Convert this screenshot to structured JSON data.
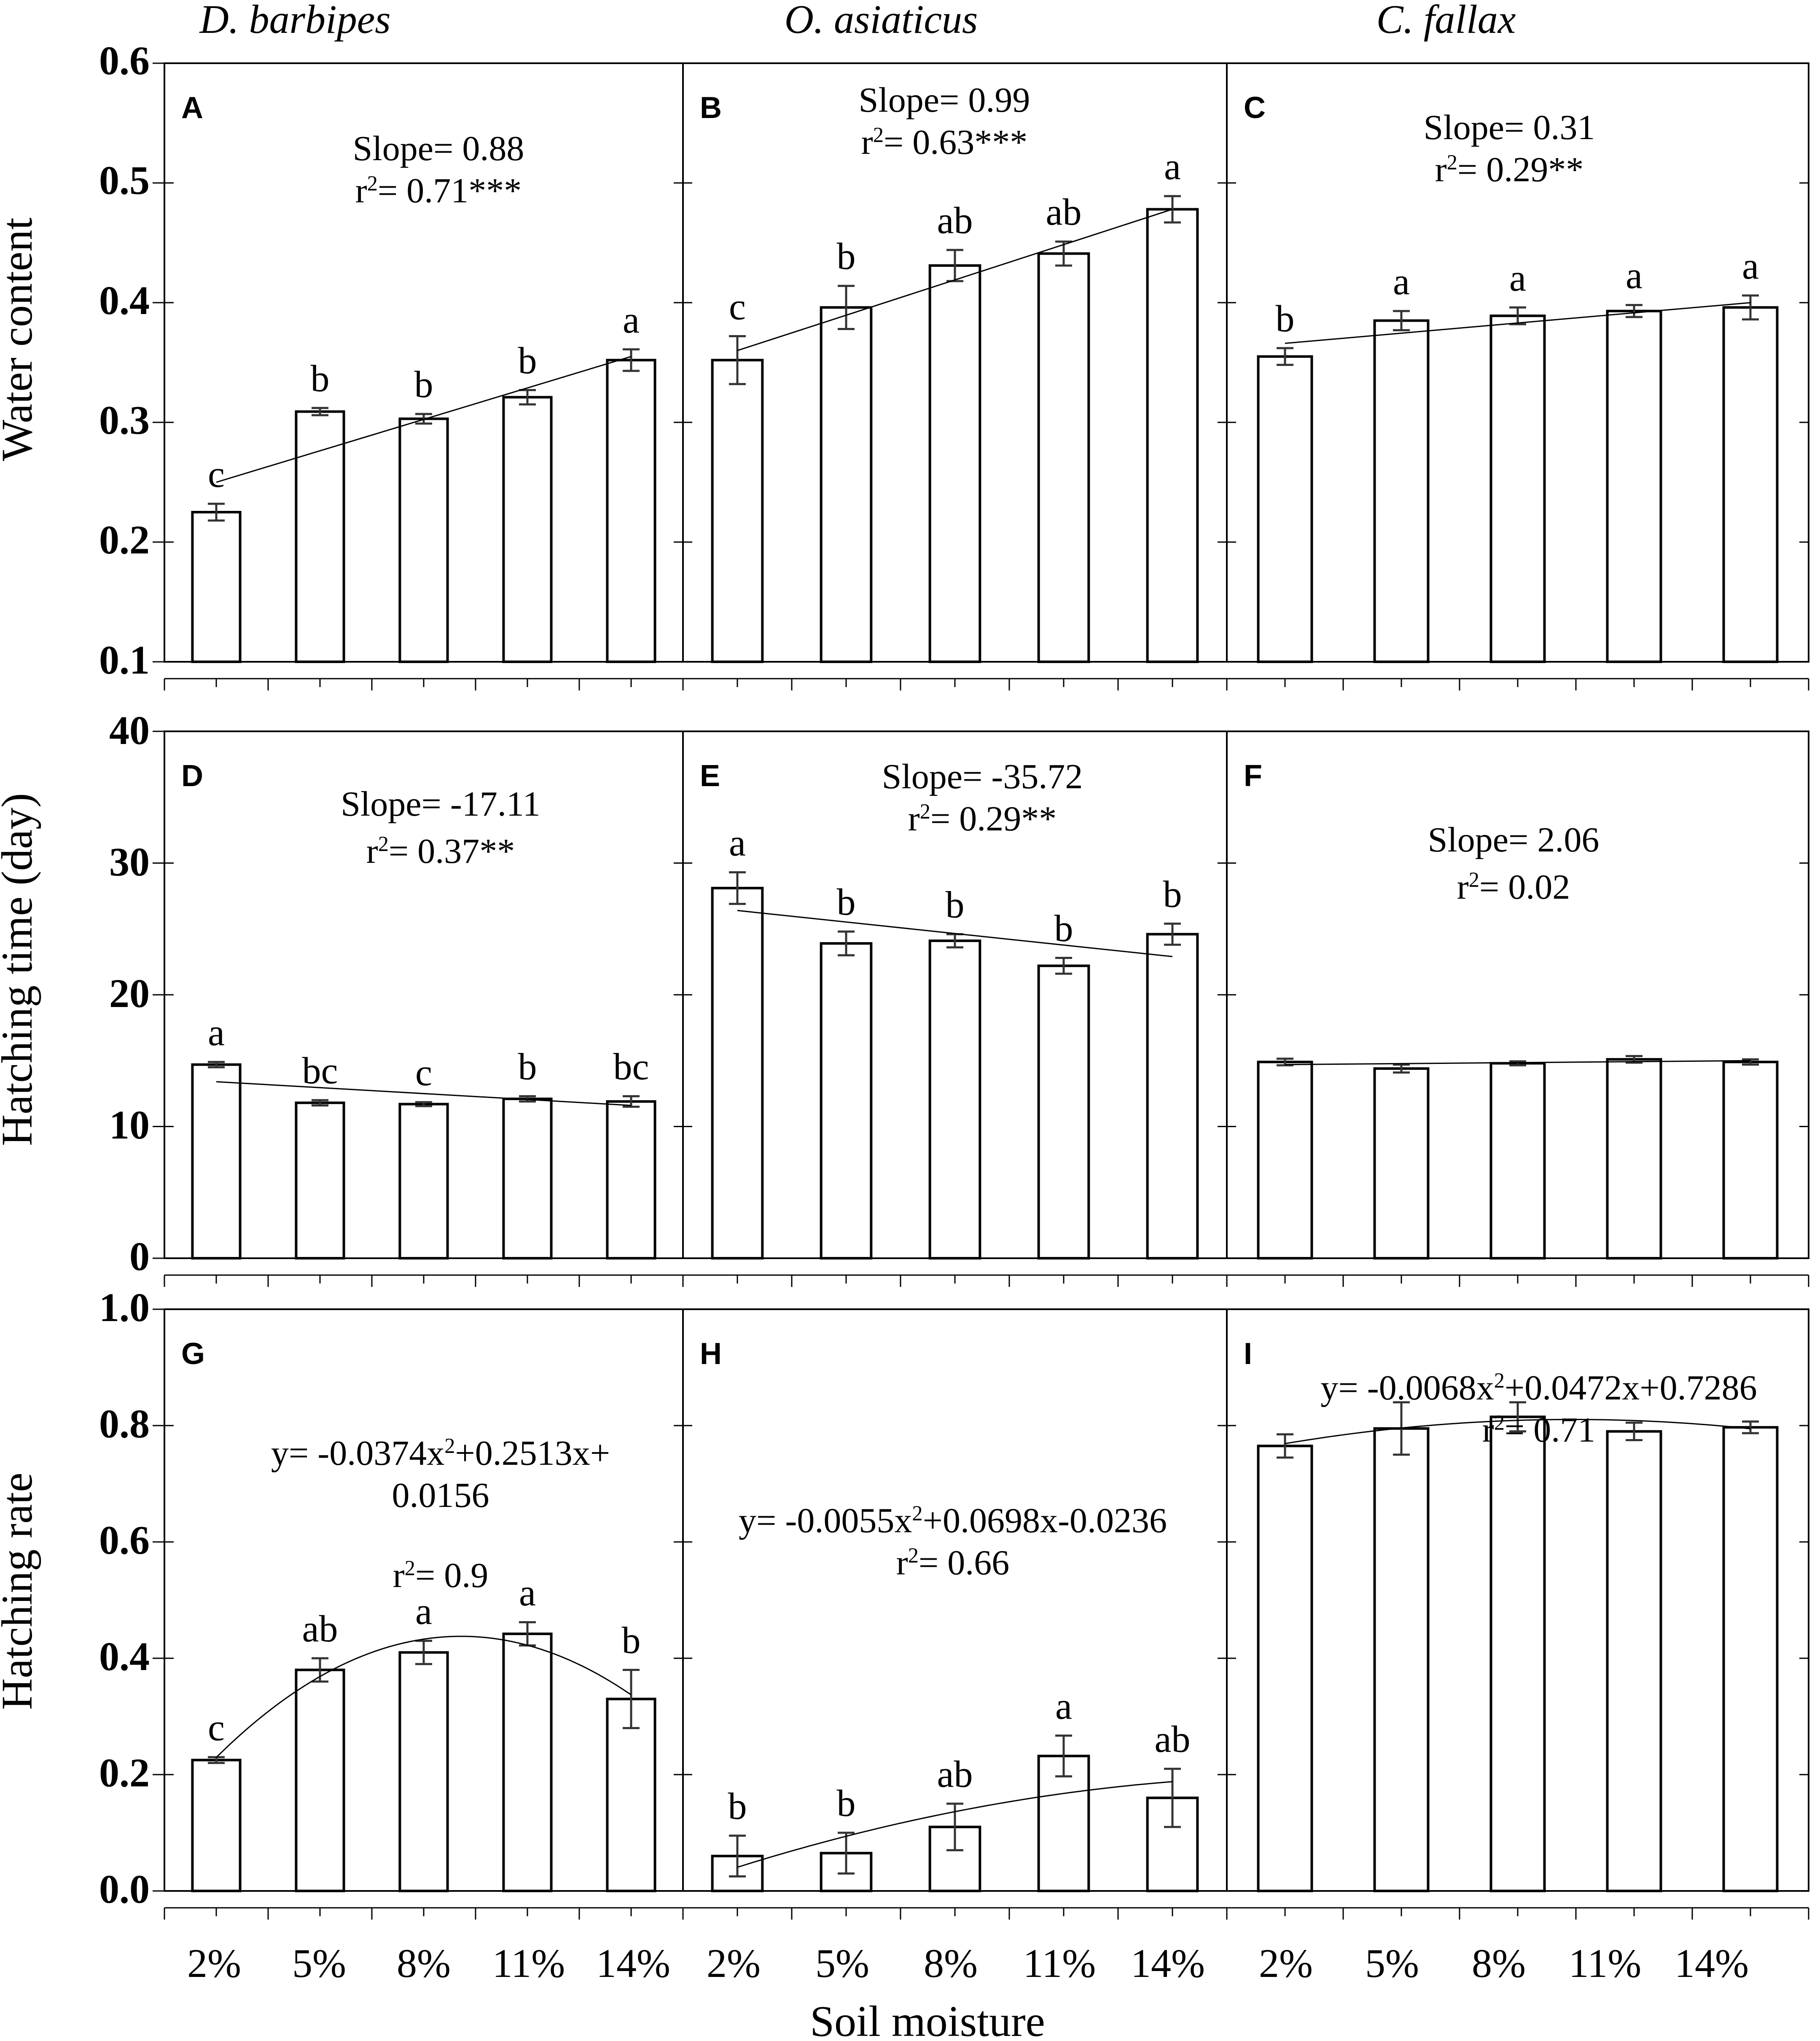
{
  "figure": {
    "species": [
      "D. barbipes",
      "O. asiaticus",
      "C. fallax"
    ],
    "x_label": "Soil moisture",
    "categories": [
      "2%",
      "5%",
      "8%",
      "11%",
      "14%"
    ],
    "rows": [
      {
        "y_label": "Water content",
        "ticks": [
          "0.1",
          "0.2",
          "0.3",
          "0.4",
          "0.5",
          "0.6"
        ]
      },
      {
        "y_label": "Hatching time (day)",
        "ticks": [
          "0",
          "10",
          "20",
          "30",
          "40"
        ]
      },
      {
        "y_label": "Hatching rate",
        "ticks": [
          "0.0",
          "0.2",
          "0.4",
          "0.6",
          "0.8",
          "1.0"
        ]
      }
    ]
  },
  "chart_data": [
    {
      "panel": "A",
      "type": "bar",
      "species": "D. barbipes",
      "ylabel": "Water content",
      "xlabel": "Soil moisture",
      "categories": [
        "2%",
        "5%",
        "8%",
        "11%",
        "14%"
      ],
      "ylim": [
        0.1,
        0.6
      ],
      "values": [
        0.225,
        0.309,
        0.303,
        0.321,
        0.352
      ],
      "errors": [
        0.007,
        0.003,
        0.004,
        0.006,
        0.009
      ],
      "letters": [
        "c",
        "b",
        "b",
        "b",
        "a"
      ],
      "annotation": [
        "Slope= 0.88",
        "r²= 0.71***"
      ],
      "fit": {
        "kind": "linear",
        "start": 0.25,
        "end": 0.355
      }
    },
    {
      "panel": "B",
      "type": "bar",
      "species": "O. asiaticus",
      "ylabel": "Water content",
      "xlabel": "Soil moisture",
      "categories": [
        "2%",
        "5%",
        "8%",
        "11%",
        "14%"
      ],
      "ylim": [
        0.1,
        0.6
      ],
      "values": [
        0.352,
        0.396,
        0.431,
        0.441,
        0.478
      ],
      "errors": [
        0.02,
        0.018,
        0.013,
        0.01,
        0.011
      ],
      "letters": [
        "c",
        "b",
        "ab",
        "ab",
        "a"
      ],
      "annotation": [
        "Slope= 0.99",
        "r²= 0.63***"
      ],
      "fit": {
        "kind": "linear",
        "start": 0.36,
        "end": 0.478
      }
    },
    {
      "panel": "C",
      "type": "bar",
      "species": "C. fallax",
      "ylabel": "Water content",
      "xlabel": "Soil moisture",
      "categories": [
        "2%",
        "5%",
        "8%",
        "11%",
        "14%"
      ],
      "ylim": [
        0.1,
        0.6
      ],
      "values": [
        0.355,
        0.385,
        0.389,
        0.393,
        0.396
      ],
      "errors": [
        0.007,
        0.008,
        0.007,
        0.005,
        0.01
      ],
      "letters": [
        "b",
        "a",
        "a",
        "a",
        "a"
      ],
      "annotation": [
        "Slope= 0.31",
        "r²= 0.29**"
      ],
      "fit": {
        "kind": "linear",
        "start": 0.366,
        "end": 0.4
      }
    },
    {
      "panel": "D",
      "type": "bar",
      "species": "D. barbipes",
      "ylabel": "Hatching time (day)",
      "xlabel": "Soil moisture",
      "categories": [
        "2%",
        "5%",
        "8%",
        "11%",
        "14%"
      ],
      "ylim": [
        0,
        40
      ],
      "values": [
        14.7,
        11.8,
        11.7,
        12.1,
        11.9
      ],
      "errors": [
        0.2,
        0.2,
        0.15,
        0.2,
        0.4
      ],
      "letters": [
        "a",
        "bc",
        "c",
        "b",
        "bc"
      ],
      "annotation": [
        "Slope= -17.11",
        "r²= 0.37**"
      ],
      "fit": {
        "kind": "linear",
        "start": 13.4,
        "end": 11.6
      }
    },
    {
      "panel": "E",
      "type": "bar",
      "species": "O. asiaticus",
      "ylabel": "Hatching time (day)",
      "xlabel": "Soil moisture",
      "categories": [
        "2%",
        "5%",
        "8%",
        "11%",
        "14%"
      ],
      "ylim": [
        0,
        40
      ],
      "values": [
        28.1,
        23.9,
        24.1,
        22.2,
        24.6
      ],
      "errors": [
        1.2,
        0.9,
        0.5,
        0.6,
        0.8
      ],
      "letters": [
        "a",
        "b",
        "b",
        "b",
        "b"
      ],
      "annotation": [
        "Slope= -35.72",
        "r²= 0.29**"
      ],
      "fit": {
        "kind": "linear",
        "start": 26.4,
        "end": 22.9
      }
    },
    {
      "panel": "F",
      "type": "bar",
      "species": "C. fallax",
      "ylabel": "Hatching time (day)",
      "xlabel": "Soil moisture",
      "categories": [
        "2%",
        "5%",
        "8%",
        "11%",
        "14%"
      ],
      "ylim": [
        0,
        40
      ],
      "values": [
        14.9,
        14.4,
        14.8,
        15.1,
        14.9
      ],
      "errors": [
        0.25,
        0.3,
        0.15,
        0.25,
        0.2
      ],
      "letters": [
        "",
        "",
        "",
        "",
        ""
      ],
      "annotation": [
        "Slope= 2.06",
        "r²= 0.02"
      ],
      "fit": {
        "kind": "linear",
        "start": 14.7,
        "end": 15.0
      }
    },
    {
      "panel": "G",
      "type": "bar",
      "species": "D. barbipes",
      "ylabel": "Hatching rate",
      "xlabel": "Soil moisture",
      "categories": [
        "2%",
        "5%",
        "8%",
        "11%",
        "14%"
      ],
      "ylim": [
        0,
        1
      ],
      "values": [
        0.225,
        0.38,
        0.41,
        0.442,
        0.33
      ],
      "errors": [
        0.005,
        0.02,
        0.02,
        0.02,
        0.05
      ],
      "letters": [
        "c",
        "ab",
        "a",
        "a",
        "b"
      ],
      "annotation": [
        "y= -0.0374x²+0.2513x+",
        "0.0156",
        "r²= 0.9"
      ],
      "fit": {
        "kind": "quadratic",
        "a": -0.0374,
        "b": 0.2513,
        "c": 0.0156
      }
    },
    {
      "panel": "H",
      "type": "bar",
      "species": "O. asiaticus",
      "ylabel": "Hatching rate",
      "xlabel": "Soil moisture",
      "categories": [
        "2%",
        "5%",
        "8%",
        "11%",
        "14%"
      ],
      "ylim": [
        0,
        1
      ],
      "values": [
        0.06,
        0.065,
        0.11,
        0.232,
        0.16
      ],
      "errors": [
        0.035,
        0.035,
        0.04,
        0.035,
        0.05
      ],
      "letters": [
        "b",
        "b",
        "ab",
        "a",
        "ab"
      ],
      "annotation": [
        "y= -0.0055x²+0.0698x-0.0236",
        "r²= 0.66"
      ],
      "fit": {
        "kind": "quadratic",
        "a": -0.0055,
        "b": 0.0698,
        "c": -0.0236
      }
    },
    {
      "panel": "I",
      "type": "bar",
      "species": "C. fallax",
      "ylabel": "Hatching rate",
      "xlabel": "Soil moisture",
      "categories": [
        "2%",
        "5%",
        "8%",
        "11%",
        "14%"
      ],
      "ylim": [
        0,
        1
      ],
      "values": [
        0.765,
        0.795,
        0.815,
        0.79,
        0.797
      ],
      "errors": [
        0.02,
        0.045,
        0.025,
        0.015,
        0.01
      ],
      "letters": [
        "",
        "",
        "",
        "",
        ""
      ],
      "annotation": [
        "y= -0.0068x²+0.0472x+0.7286",
        "r²= 0.71"
      ],
      "fit": {
        "kind": "quadratic",
        "a": -0.0068,
        "b": 0.0472,
        "c": 0.7286
      }
    }
  ]
}
